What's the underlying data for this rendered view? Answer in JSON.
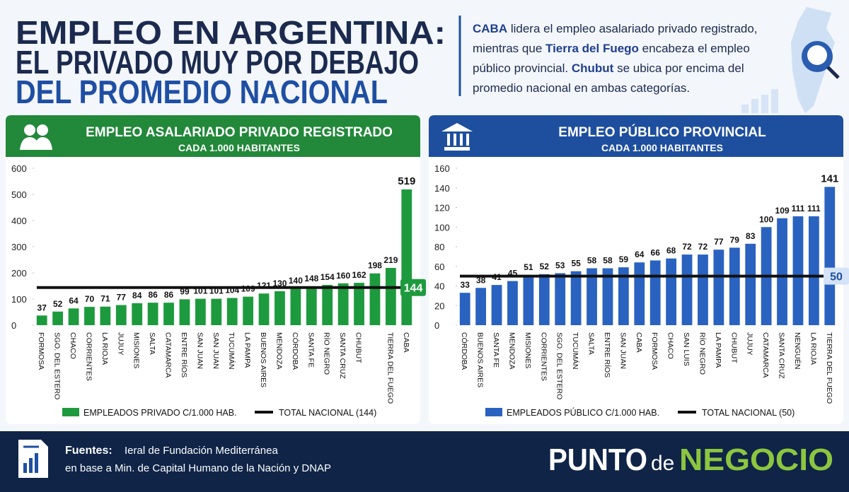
{
  "header": {
    "title_lines": [
      "EMPLEO EN ARGENTINA:",
      "EL PRIVADO MUY POR DEBAJO",
      "DEL PROMEDIO NACIONAL"
    ],
    "title_colors": [
      "#1b2a4e",
      "#1b2a4e",
      "#1f4fa3"
    ]
  },
  "description": {
    "lines": [
      [
        {
          "text": "CABA",
          "bold": true
        },
        {
          "text": " lidera el empleo asalariado privado registrado,",
          "bold": false
        }
      ],
      [
        {
          "text": "mientras que ",
          "bold": false
        },
        {
          "text": "Tierra del Fuego",
          "bold": true
        },
        {
          "text": " encabeza el empleo",
          "bold": false
        }
      ],
      [
        {
          "text": "público provincial. ",
          "bold": false
        },
        {
          "text": "Chubut",
          "bold": true
        },
        {
          "text": " se ubica por encima del",
          "bold": false
        }
      ],
      [
        {
          "text": "promedio nacional en ambas categorías.",
          "bold": false
        }
      ]
    ]
  },
  "chart_data": [
    {
      "type": "bar",
      "title": "EMPLEO ASALARIADO PRIVADO REGISTRADO",
      "subtitle": "CADA 1.000 HABITANTES",
      "header_color": "#22883a",
      "categories": [
        "FORMOSA",
        "SGO. DEL ESTERO",
        "CHACO",
        "CORRIENTES",
        "LA RIOJA",
        "JUJUY",
        "MISIONES",
        "SALTA",
        "CATAMARCA",
        "ENTRE RÍOS",
        "SAN JUAN",
        "SAN JUAN",
        "TUCUMÁN",
        "LA PAMPA",
        "BUENOS AIRES",
        "MENDOZA",
        "CÓRDOBA",
        "SANTA FE",
        "RÍO NEGRO",
        "SANTA CRUZ",
        "CHUBUT",
        null,
        "TIERRA DEL FUEGO",
        "CABA"
      ],
      "series": [
        {
          "name": "EMPLEADOS PRIVADO C/1.000 HAB.",
          "color": "#1e9a3e",
          "values": [
            37,
            52,
            64,
            70,
            71,
            77,
            84,
            86,
            86,
            99,
            101,
            101,
            104,
            109,
            121,
            130,
            140,
            148,
            154,
            160,
            162,
            198,
            219,
            519
          ]
        }
      ],
      "reference_line": {
        "name": "TOTAL NACIONAL (144)",
        "value": 144,
        "color": "#111111",
        "box_color": "#1e9a3e",
        "box_text_color": "#ffffff"
      },
      "ylim": [
        0,
        600
      ],
      "yticks": [
        0,
        100,
        200,
        300,
        400,
        500,
        600
      ]
    },
    {
      "type": "bar",
      "title": "EMPLEO PÚBLICO PROVINCIAL",
      "subtitle": "CADA 1.000 HABITANTES",
      "header_color": "#1e4f9e",
      "categories": [
        "CÓRDOBA",
        "BUENOS AIRES",
        "SANTA FE",
        "MENDOZA",
        "MISIONES",
        "CORRIENTES",
        "SGO. DEL ESTERO",
        "TUCUMÁN",
        "SALTA",
        "ENTRE RÍOS",
        "SAN JUAN",
        "CABA",
        "FORMOSA",
        "CHACO",
        "SAN LUIS",
        "RÍO NEGRO",
        "LA PAMPA",
        "CHUBUT",
        "JUJUY",
        "CATAMARCA",
        "SANTA CRUZ",
        "NENGUÉN",
        "LA RIOJA",
        "TIERRA DEL FUEGO"
      ],
      "series": [
        {
          "name": "EMPLEADOS PÚBLICO C/1.000 HAB.",
          "color": "#2a62c0",
          "values": [
            33,
            38,
            41,
            45,
            51,
            52,
            53,
            55,
            58,
            58,
            59,
            64,
            66,
            68,
            72,
            72,
            77,
            79,
            83,
            100,
            109,
            111,
            111,
            141
          ]
        }
      ],
      "reference_line": {
        "name": "TOTAL NACIONAL (50)",
        "value": 50,
        "color": "#111111",
        "box_color": "#d4e3f7",
        "box_text_color": "#1e4f9e"
      },
      "ylim": [
        0,
        160
      ],
      "yticks": [
        0,
        20,
        40,
        60,
        80,
        100,
        120,
        140,
        160
      ]
    }
  ],
  "footer": {
    "label": "Fuentes:",
    "lines": [
      "Ieral de Fundación Mediterránea",
      "en base a Min. de Capital Humano de la Nación y DNAP"
    ]
  },
  "logo": {
    "parts": [
      "PUNTO",
      "de",
      "NEGOCIO"
    ]
  }
}
